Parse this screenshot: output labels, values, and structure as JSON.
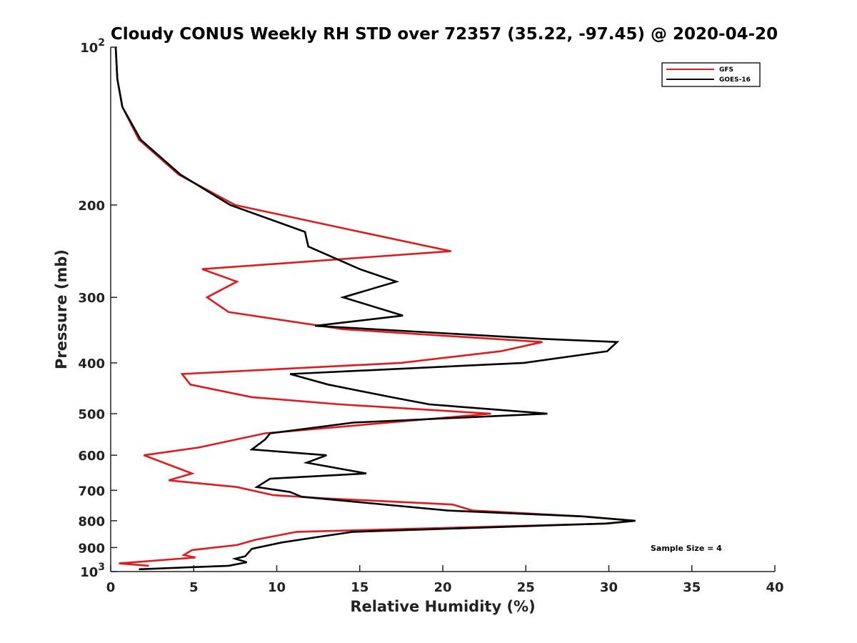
{
  "chart_data": {
    "type": "line",
    "title": "Cloudy CONUS Weekly RH STD over 72357 (35.22, -97.45) @ 2020-04-20",
    "xlabel": "Relative Humidity (%)",
    "ylabel": "Pressure (mb)",
    "xlim": [
      0,
      40
    ],
    "ylim": [
      100,
      1000
    ],
    "y_scale": "log",
    "y_reversed": true,
    "grid": false,
    "legend_position": "top-right",
    "x_ticks": [
      "0",
      "5",
      "10",
      "15",
      "20",
      "25",
      "30",
      "35",
      "40"
    ],
    "y_ticks": [
      {
        "value": 100,
        "base": "10",
        "exp": "2"
      },
      {
        "value": 200,
        "label": "200"
      },
      {
        "value": 300,
        "label": "300"
      },
      {
        "value": 400,
        "label": "400"
      },
      {
        "value": 500,
        "label": "500"
      },
      {
        "value": 600,
        "label": "600"
      },
      {
        "value": 700,
        "label": "700"
      },
      {
        "value": 800,
        "label": "800"
      },
      {
        "value": 900,
        "label": "900"
      },
      {
        "value": 1000,
        "base": "10",
        "exp": "3"
      }
    ],
    "annotation": "Sample Size = 4",
    "series": [
      {
        "name": "GFS",
        "color": "#e31a1c",
        "points": [
          [
            0.3,
            100
          ],
          [
            0.4,
            115
          ],
          [
            0.7,
            130
          ],
          [
            1.7,
            150
          ],
          [
            4.1,
            175
          ],
          [
            7.5,
            200
          ],
          [
            15.0,
            225
          ],
          [
            20.5,
            245
          ],
          [
            5.5,
            265
          ],
          [
            7.6,
            280
          ],
          [
            5.8,
            300
          ],
          [
            7.1,
            320
          ],
          [
            14.0,
            345
          ],
          [
            26.0,
            365
          ],
          [
            23.5,
            380
          ],
          [
            17.5,
            400
          ],
          [
            4.3,
            420
          ],
          [
            4.8,
            440
          ],
          [
            8.5,
            465
          ],
          [
            13.8,
            480
          ],
          [
            22.9,
            500
          ],
          [
            9.3,
            545
          ],
          [
            5.3,
            580
          ],
          [
            2.0,
            600
          ],
          [
            4.9,
            650
          ],
          [
            3.5,
            670
          ],
          [
            7.6,
            690
          ],
          [
            9.8,
            715
          ],
          [
            12.9,
            725
          ],
          [
            20.6,
            745
          ],
          [
            21.8,
            765
          ],
          [
            28.5,
            785
          ],
          [
            31.5,
            800
          ],
          [
            29.9,
            810
          ],
          [
            11.2,
            840
          ],
          [
            8.7,
            870
          ],
          [
            7.6,
            890
          ],
          [
            4.9,
            910
          ],
          [
            4.4,
            930
          ],
          [
            5.1,
            940
          ],
          [
            0.5,
            965
          ],
          [
            2.3,
            975
          ]
        ]
      },
      {
        "name": "GOES-16",
        "color": "#000000",
        "points": [
          [
            0.3,
            100
          ],
          [
            0.4,
            115
          ],
          [
            0.7,
            130
          ],
          [
            1.8,
            150
          ],
          [
            4.2,
            175
          ],
          [
            7.2,
            200
          ],
          [
            11.7,
            225
          ],
          [
            11.9,
            240
          ],
          [
            15.0,
            265
          ],
          [
            17.2,
            280
          ],
          [
            14.0,
            300
          ],
          [
            17.6,
            325
          ],
          [
            12.3,
            340
          ],
          [
            26.0,
            360
          ],
          [
            30.5,
            365
          ],
          [
            29.9,
            380
          ],
          [
            24.9,
            400
          ],
          [
            10.8,
            420
          ],
          [
            13.1,
            440
          ],
          [
            16.9,
            465
          ],
          [
            19.2,
            480
          ],
          [
            26.3,
            500
          ],
          [
            14.6,
            520
          ],
          [
            9.6,
            545
          ],
          [
            9.3,
            560
          ],
          [
            8.5,
            585
          ],
          [
            13.0,
            600
          ],
          [
            11.8,
            620
          ],
          [
            15.4,
            650
          ],
          [
            9.6,
            665
          ],
          [
            8.8,
            690
          ],
          [
            10.8,
            705
          ],
          [
            11.5,
            720
          ],
          [
            20.3,
            765
          ],
          [
            28.4,
            785
          ],
          [
            31.6,
            800
          ],
          [
            29.8,
            810
          ],
          [
            14.6,
            840
          ],
          [
            12.4,
            860
          ],
          [
            10.3,
            880
          ],
          [
            8.5,
            905
          ],
          [
            8.1,
            935
          ],
          [
            7.5,
            945
          ],
          [
            8.2,
            960
          ],
          [
            7.1,
            975
          ],
          [
            1.7,
            990
          ]
        ]
      }
    ]
  }
}
